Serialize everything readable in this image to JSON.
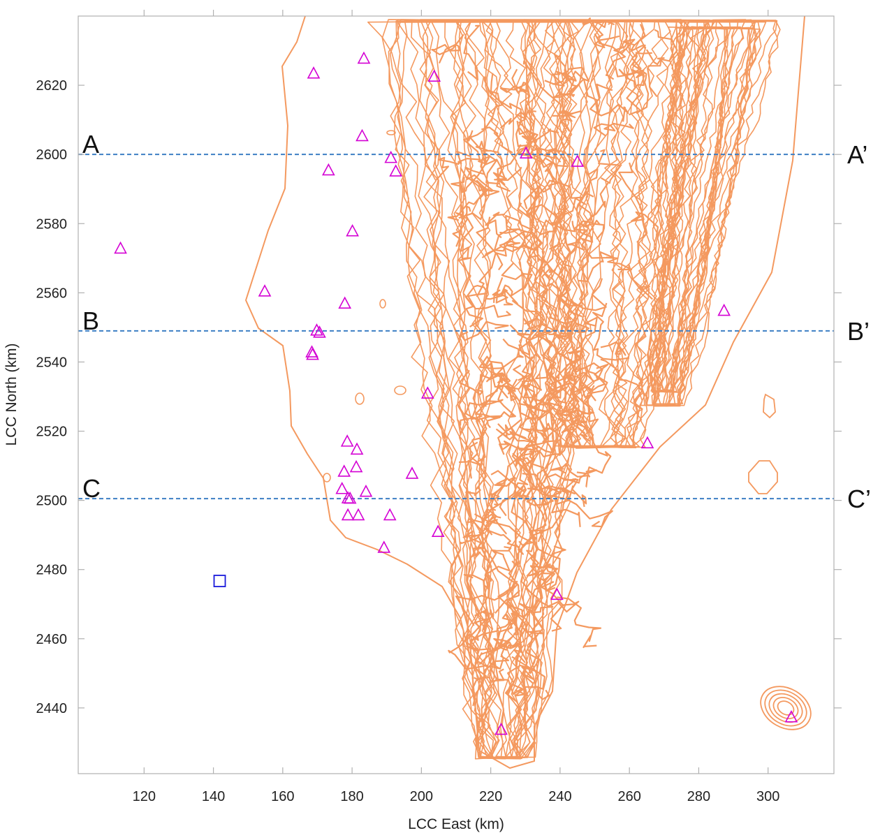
{
  "chart_data": {
    "type": "scatter",
    "xlabel": "LCC East (km)",
    "ylabel": "LCC North (km)",
    "xlim": [
      101,
      319
    ],
    "ylim": [
      2421,
      2640
    ],
    "xticks": [
      120,
      140,
      160,
      180,
      200,
      220,
      240,
      260,
      280,
      300
    ],
    "yticks": [
      2440,
      2460,
      2480,
      2500,
      2520,
      2540,
      2560,
      2580,
      2600,
      2620
    ],
    "grid": false,
    "colors": {
      "terrain_contour": "#f4995f",
      "site_marker": "#d400d4",
      "square_marker": "#1a1adb",
      "cross_section_line": "#3d7fc4",
      "frame": "#b0b0b0"
    },
    "cross_sections": [
      {
        "start_label": "A",
        "end_label": "A’",
        "y": 2600
      },
      {
        "start_label": "B",
        "end_label": "B’",
        "y": 2549
      },
      {
        "start_label": "C",
        "end_label": "C’",
        "y": 2500.5
      }
    ],
    "series": [
      {
        "marker": "triangle",
        "color": "#d400d4",
        "points": [
          [
            113.2,
            2572.7
          ],
          [
            154.8,
            2560.3
          ],
          [
            168.9,
            2623.3
          ],
          [
            173.2,
            2595.3
          ],
          [
            183.4,
            2627.6
          ],
          [
            182.9,
            2605.2
          ],
          [
            191.2,
            2598.9
          ],
          [
            192.6,
            2595.0
          ],
          [
            203.7,
            2622.4
          ],
          [
            180.1,
            2577.7
          ],
          [
            177.9,
            2556.8
          ],
          [
            169.8,
            2549.0
          ],
          [
            170.6,
            2548.4
          ],
          [
            168.4,
            2542.7
          ],
          [
            168.6,
            2542.0
          ],
          [
            201.8,
            2530.8
          ],
          [
            178.6,
            2516.9
          ],
          [
            181.4,
            2514.6
          ],
          [
            177.7,
            2508.2
          ],
          [
            181.2,
            2509.5
          ],
          [
            197.3,
            2507.6
          ],
          [
            177.1,
            2503.2
          ],
          [
            184.0,
            2502.4
          ],
          [
            178.8,
            2500.5
          ],
          [
            179.4,
            2500.4
          ],
          [
            178.8,
            2495.6
          ],
          [
            181.8,
            2495.6
          ],
          [
            190.9,
            2495.6
          ],
          [
            204.8,
            2490.8
          ],
          [
            189.2,
            2486.2
          ],
          [
            230.2,
            2600.2
          ],
          [
            245.0,
            2597.8
          ],
          [
            287.3,
            2554.7
          ],
          [
            265.2,
            2516.4
          ],
          [
            239.1,
            2472.6
          ],
          [
            223.0,
            2433.6
          ],
          [
            306.7,
            2437.2
          ]
        ]
      },
      {
        "marker": "square",
        "color": "#1a1adb",
        "points": [
          [
            141.8,
            2476.7
          ]
        ]
      }
    ]
  }
}
